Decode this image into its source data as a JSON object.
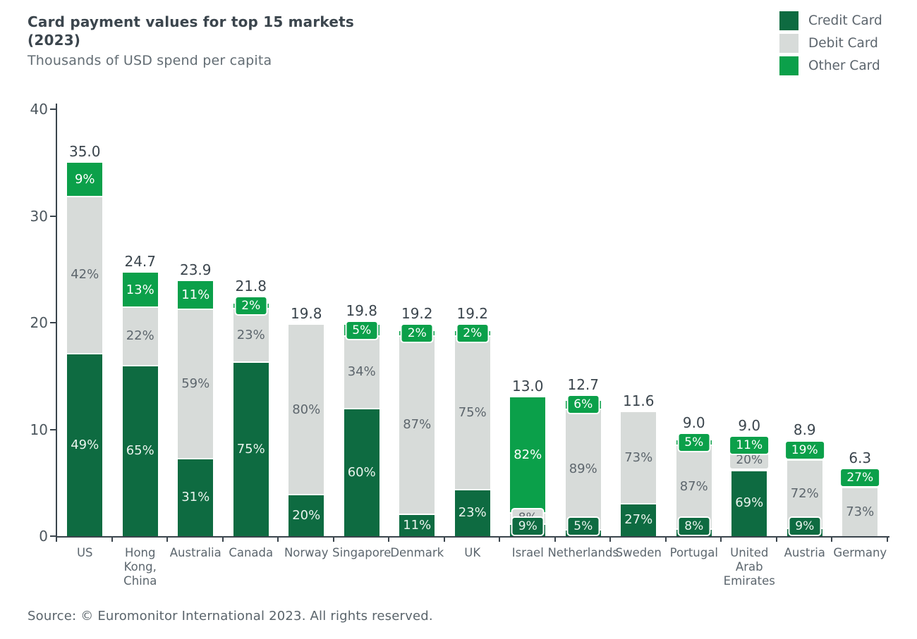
{
  "header": {
    "title_line1": "Card payment values for top 15 markets",
    "title_line2": "(2023)",
    "subtitle": "Thousands of USD spend per capita"
  },
  "source": "Source: © Euromonitor International 2023. All rights reserved.",
  "colors": {
    "credit_card": "#0e6b41",
    "debit_card": "#d7dbd9",
    "other_card": "#0ba04a",
    "axis": "#3a444c"
  },
  "chart_data": {
    "type": "bar",
    "stacked": true,
    "title": "Card payment values for top 15 markets (2023)",
    "subtitle": "Thousands of USD spend per capita",
    "ylabel": "Thousands of USD spend per capita",
    "ylim": [
      0,
      40
    ],
    "yticks": [
      0,
      10,
      20,
      30,
      40
    ],
    "grid": false,
    "legend_position": "top-right",
    "categories": [
      "US",
      "Hong Kong, China",
      "Australia",
      "Canada",
      "Norway",
      "Singapore",
      "Denmark",
      "UK",
      "Israel",
      "Netherlands",
      "Sweden",
      "Portugal",
      "United Arab Emirates",
      "Austria",
      "Germany"
    ],
    "category_label_lines": [
      [
        "US"
      ],
      [
        "Hong",
        "Kong,",
        "China"
      ],
      [
        "Australia"
      ],
      [
        "Canada"
      ],
      [
        "Norway"
      ],
      [
        "Singapore"
      ],
      [
        "Denmark"
      ],
      [
        "UK"
      ],
      [
        "Israel"
      ],
      [
        "Netherlands"
      ],
      [
        "Sweden"
      ],
      [
        "Portugal"
      ],
      [
        "United",
        "Arab",
        "Emirates"
      ],
      [
        "Austria"
      ],
      [
        "Germany"
      ]
    ],
    "totals": [
      35.0,
      24.7,
      23.9,
      21.8,
      19.8,
      19.8,
      19.2,
      19.2,
      13.0,
      12.7,
      11.6,
      9.0,
      9.0,
      8.9,
      6.3
    ],
    "total_labels": [
      "35.0",
      "24.7",
      "23.9",
      "21.8",
      "19.8",
      "19.8",
      "19.2",
      "19.2",
      "13.0",
      "12.7",
      "11.6",
      "9.0",
      "9.0",
      "8.9",
      "6.3"
    ],
    "series": [
      {
        "name": "Credit Card",
        "color": "#0e6b41",
        "text_color": "#e9f3ed",
        "pct": [
          49,
          65,
          31,
          75,
          20,
          60,
          11,
          23,
          9,
          5,
          27,
          8,
          69,
          9,
          null
        ]
      },
      {
        "name": "Debit Card",
        "color": "#d7dbd9",
        "text_color": "#5d666d",
        "pct": [
          42,
          22,
          59,
          23,
          80,
          34,
          87,
          75,
          8,
          89,
          73,
          87,
          20,
          72,
          73
        ]
      },
      {
        "name": "Other Card",
        "color": "#0ba04a",
        "text_color": "#ffffff",
        "pct": [
          9,
          13,
          11,
          2,
          null,
          5,
          2,
          2,
          82,
          6,
          null,
          5,
          11,
          19,
          27
        ]
      }
    ]
  }
}
